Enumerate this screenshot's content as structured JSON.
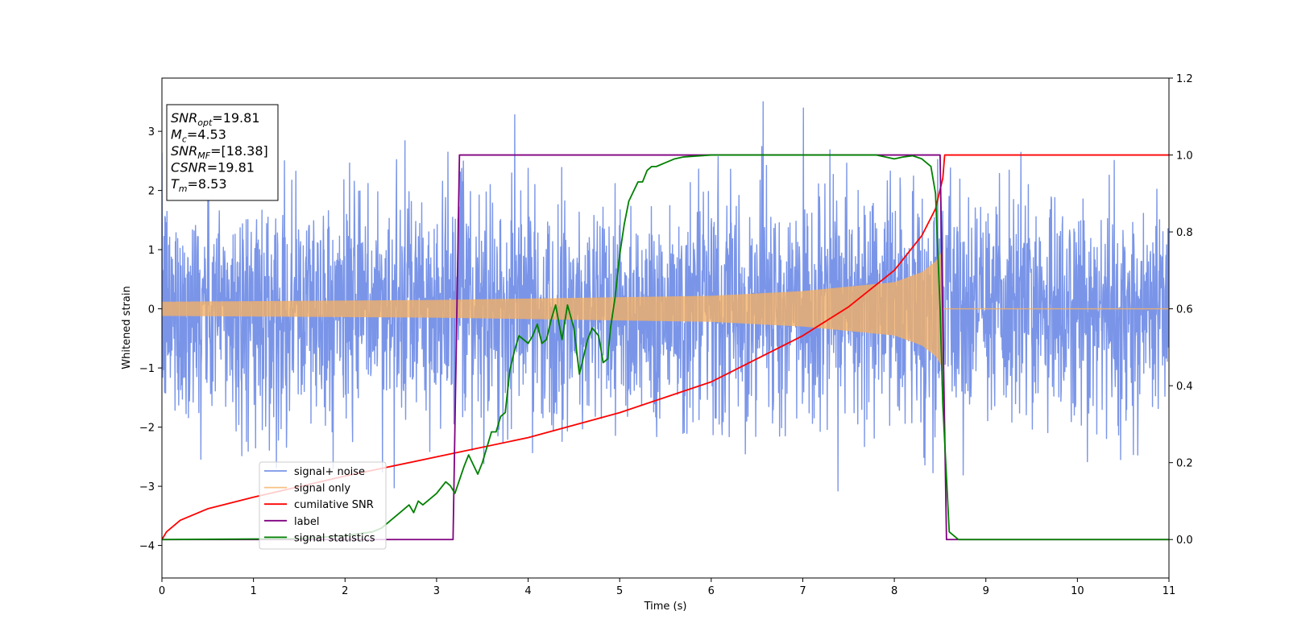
{
  "chart_data": {
    "type": "line",
    "xlabel": "Time (s)",
    "ylabel": "Whitened strain",
    "xlim": [
      0,
      11
    ],
    "ylim_left": [
      -4.55,
      3.9
    ],
    "ylim_right": [
      -0.1,
      1.2
    ],
    "x_ticks": [
      0,
      1,
      2,
      3,
      4,
      5,
      6,
      7,
      8,
      9,
      10,
      11
    ],
    "y_ticks_left": [
      -4,
      -3,
      -2,
      -1,
      0,
      1,
      2,
      3
    ],
    "y_ticks_right": [
      0.0,
      0.2,
      0.4,
      0.6,
      0.8,
      1.0,
      1.2
    ],
    "grid": false,
    "legend_position": "lower-left",
    "info_box": {
      "lines": [
        {
          "sym": "SNR",
          "sub": "opt",
          "val": "=19.81"
        },
        {
          "sym": "M",
          "sub": "c",
          "val": "=4.53"
        },
        {
          "sym": "SNR",
          "sub": "MF",
          "val": "=[18.38]"
        },
        {
          "sym": "CSNR",
          "sub": "",
          "val": "=19.81"
        },
        {
          "sym": "T",
          "sub": "m",
          "val": "=8.53"
        }
      ]
    },
    "series": [
      {
        "name": "signal+ noise",
        "axis": "left",
        "color": "#6b8ae6",
        "kind": "noise",
        "noise_sigma": 0.95,
        "typical_max": 2.0,
        "peak_max": 3.5,
        "peak_min": -4.15,
        "x_range": [
          0,
          11
        ]
      },
      {
        "name": "signal only",
        "axis": "left",
        "color": "#f5b063",
        "kind": "chirp",
        "envelope": {
          "x": [
            0,
            3,
            6,
            7,
            8,
            8.3,
            8.45,
            8.53
          ],
          "y": [
            0.12,
            0.15,
            0.22,
            0.3,
            0.45,
            0.62,
            0.8,
            1.0
          ]
        },
        "end_time": 8.53,
        "x_range": [
          0,
          11
        ]
      },
      {
        "name": "cumilative SNR",
        "axis": "right",
        "color": "#ff0000",
        "x": [
          0,
          0.05,
          0.2,
          0.5,
          1,
          2,
          3,
          4,
          5,
          6,
          7,
          7.5,
          8,
          8.3,
          8.45,
          8.53,
          8.55,
          11
        ],
        "y": [
          0.0,
          0.02,
          0.05,
          0.08,
          0.11,
          0.165,
          0.215,
          0.265,
          0.33,
          0.41,
          0.53,
          0.605,
          0.7,
          0.79,
          0.86,
          0.94,
          1.0,
          1.0
        ]
      },
      {
        "name": "label",
        "axis": "right",
        "color": "#800080",
        "x": [
          0,
          3.18,
          3.25,
          8.5,
          8.57,
          11
        ],
        "y": [
          0,
          0,
          1,
          1,
          0,
          0
        ]
      },
      {
        "name": "signal statistics",
        "axis": "right",
        "color": "#008000",
        "x": [
          0,
          1.5,
          2.0,
          2.3,
          2.4,
          2.5,
          2.6,
          2.7,
          2.75,
          2.8,
          2.85,
          2.9,
          2.95,
          3.0,
          3.1,
          3.15,
          3.2,
          3.3,
          3.35,
          3.45,
          3.5,
          3.6,
          3.65,
          3.7,
          3.75,
          3.8,
          3.85,
          3.9,
          3.95,
          4.0,
          4.05,
          4.1,
          4.15,
          4.2,
          4.25,
          4.3,
          4.37,
          4.43,
          4.5,
          4.56,
          4.6,
          4.65,
          4.7,
          4.77,
          4.82,
          4.87,
          4.9,
          4.95,
          5.0,
          5.05,
          5.1,
          5.2,
          5.25,
          5.3,
          5.35,
          5.4,
          5.5,
          5.6,
          5.7,
          6.0,
          6.5,
          7.0,
          7.5,
          7.8,
          8.0,
          8.1,
          8.2,
          8.3,
          8.4,
          8.45,
          8.5,
          8.53,
          8.6,
          8.7,
          8.8,
          9.0,
          11
        ],
        "y": [
          0,
          0.002,
          0.01,
          0.02,
          0.03,
          0.05,
          0.07,
          0.09,
          0.07,
          0.1,
          0.09,
          0.1,
          0.11,
          0.12,
          0.15,
          0.14,
          0.12,
          0.19,
          0.22,
          0.17,
          0.2,
          0.28,
          0.28,
          0.32,
          0.33,
          0.44,
          0.49,
          0.53,
          0.52,
          0.51,
          0.53,
          0.56,
          0.51,
          0.52,
          0.57,
          0.61,
          0.52,
          0.61,
          0.55,
          0.43,
          0.47,
          0.52,
          0.55,
          0.53,
          0.46,
          0.47,
          0.55,
          0.63,
          0.74,
          0.82,
          0.88,
          0.93,
          0.93,
          0.96,
          0.97,
          0.97,
          0.98,
          0.99,
          0.995,
          1.0,
          1.0,
          1.0,
          1.0,
          1.0,
          0.99,
          0.995,
          0.998,
          0.99,
          0.97,
          0.9,
          0.6,
          0.35,
          0.02,
          0.0,
          0.0,
          0.0,
          0.0
        ]
      }
    ]
  }
}
